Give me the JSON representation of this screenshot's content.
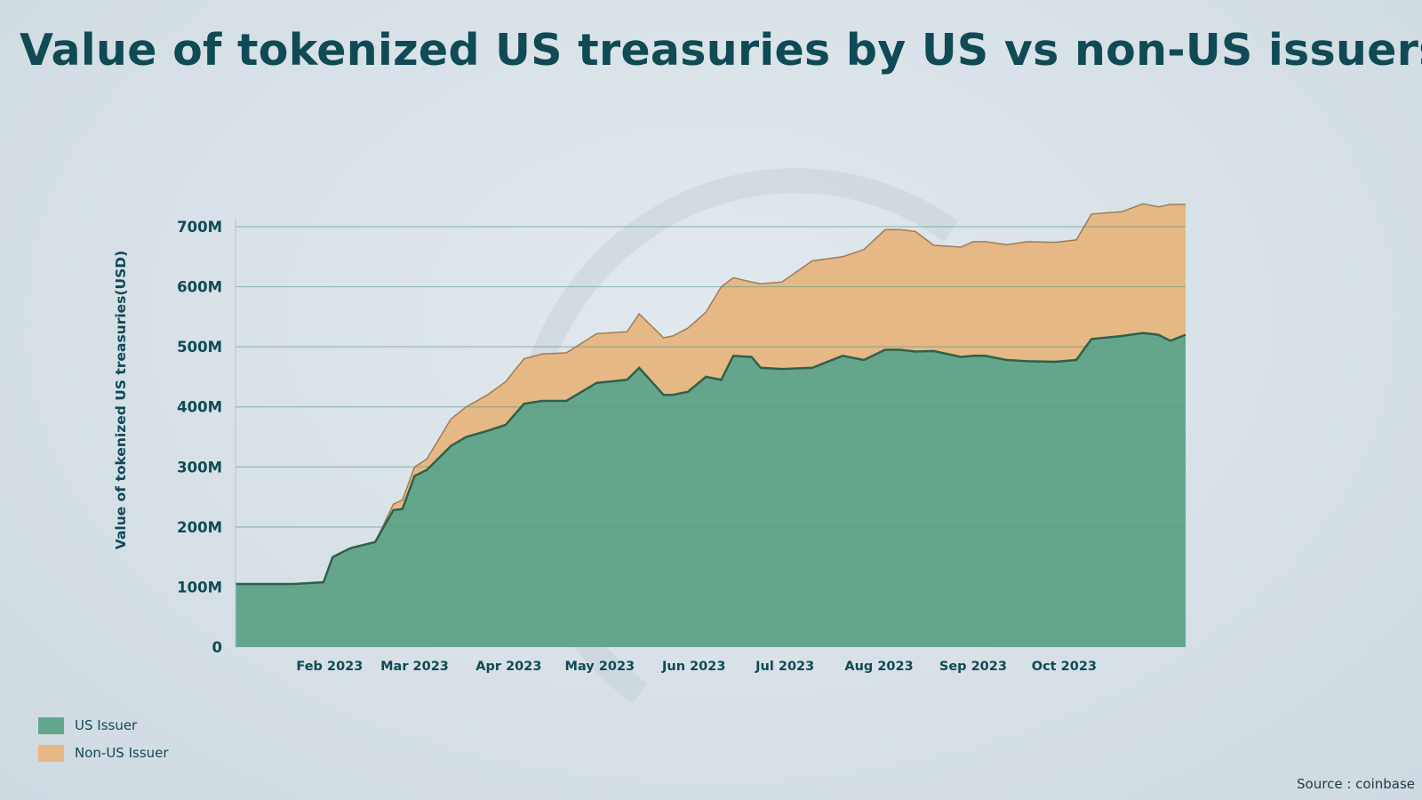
{
  "title": "Value of tokenized US treasuries by US vs non-US issuers",
  "source": "Source : coinbase",
  "colors": {
    "us": "#64a68c",
    "us_line": "#2f6049",
    "nonus": "#e5b886",
    "nonus_line": "#a07c55",
    "text": "#0f4a55",
    "grid": "#5d9a82"
  },
  "legend": [
    {
      "label": "US Issuer",
      "color": "#64a68c"
    },
    {
      "label": "Non-US Issuer",
      "color": "#e5b886"
    }
  ],
  "chart_data": {
    "type": "area",
    "stacked": true,
    "title": "Value of tokenized US treasuries by US vs non-US issuers",
    "xlabel": "",
    "ylabel": "Value of tokenized US treasuries(USD)",
    "xlim": [
      "2023-01-01",
      "2023-11-10"
    ],
    "ylim": [
      0,
      700000000
    ],
    "y_ticks": [
      {
        "value": 0,
        "label": "0"
      },
      {
        "value": 100000000,
        "label": "100M"
      },
      {
        "value": 200000000,
        "label": "200M"
      },
      {
        "value": 300000000,
        "label": "300M"
      },
      {
        "value": 400000000,
        "label": "400M"
      },
      {
        "value": 500000000,
        "label": "500M"
      },
      {
        "value": 600000000,
        "label": "600M"
      },
      {
        "value": 700000000,
        "label": "700M"
      }
    ],
    "x_ticks": [
      {
        "value": "2023-02-01",
        "label": "Feb 2023"
      },
      {
        "value": "2023-03-01",
        "label": "Mar 2023"
      },
      {
        "value": "2023-04-01",
        "label": "Apr 2023"
      },
      {
        "value": "2023-05-01",
        "label": "May 2023"
      },
      {
        "value": "2023-06-01",
        "label": "Jun 2023"
      },
      {
        "value": "2023-07-01",
        "label": "Jul 2023"
      },
      {
        "value": "2023-08-01",
        "label": "Aug 2023"
      },
      {
        "value": "2023-09-01",
        "label": "Sep 2023"
      },
      {
        "value": "2023-10-01",
        "label": "Oct 2023"
      }
    ],
    "grid": true,
    "legend_position": "bottom-left",
    "x": [
      "2023-01-01",
      "2023-01-20",
      "2023-01-30",
      "2023-02-02",
      "2023-02-08",
      "2023-02-16",
      "2023-02-22",
      "2023-02-25",
      "2023-03-01",
      "2023-03-05",
      "2023-03-13",
      "2023-03-18",
      "2023-03-25",
      "2023-03-31",
      "2023-04-06",
      "2023-04-12",
      "2023-04-20",
      "2023-04-30",
      "2023-05-10",
      "2023-05-14",
      "2023-05-22",
      "2023-05-25",
      "2023-05-30",
      "2023-06-05",
      "2023-06-10",
      "2023-06-14",
      "2023-06-20",
      "2023-06-23",
      "2023-06-30",
      "2023-07-10",
      "2023-07-20",
      "2023-07-27",
      "2023-08-03",
      "2023-08-08",
      "2023-08-13",
      "2023-08-19",
      "2023-08-28",
      "2023-09-01",
      "2023-09-05",
      "2023-09-12",
      "2023-09-19",
      "2023-09-28",
      "2023-10-05",
      "2023-10-10",
      "2023-10-20",
      "2023-10-27",
      "2023-11-01",
      "2023-11-05",
      "2023-11-10"
    ],
    "series": [
      {
        "name": "US Issuer",
        "values": [
          105000000,
          105000000,
          108000000,
          150000000,
          165000000,
          175000000,
          228000000,
          230000000,
          285000000,
          295000000,
          335000000,
          350000000,
          360000000,
          370000000,
          405000000,
          410000000,
          410000000,
          440000000,
          445000000,
          465000000,
          420000000,
          420000000,
          425000000,
          450000000,
          445000000,
          485000000,
          483000000,
          465000000,
          463000000,
          465000000,
          485000000,
          478000000,
          495000000,
          495000000,
          492000000,
          493000000,
          483000000,
          485000000,
          485000000,
          478000000,
          476000000,
          475000000,
          478000000,
          513000000,
          518000000,
          523000000,
          520000000,
          510000000,
          520000000
        ]
      },
      {
        "name": "Non-US Issuer",
        "values": [
          0,
          0,
          0,
          0,
          0,
          0,
          10000000,
          15000000,
          15000000,
          18000000,
          45000000,
          50000000,
          60000000,
          72000000,
          75000000,
          78000000,
          80000000,
          82000000,
          80000000,
          90000000,
          95000000,
          98000000,
          106000000,
          108000000,
          155000000,
          130000000,
          125000000,
          140000000,
          145000000,
          178000000,
          165000000,
          184000000,
          200000000,
          200000000,
          200000000,
          176000000,
          183000000,
          190000000,
          190000000,
          192000000,
          199000000,
          199000000,
          200000000,
          208000000,
          207000000,
          215000000,
          213000000,
          227000000,
          217000000
        ]
      }
    ]
  }
}
